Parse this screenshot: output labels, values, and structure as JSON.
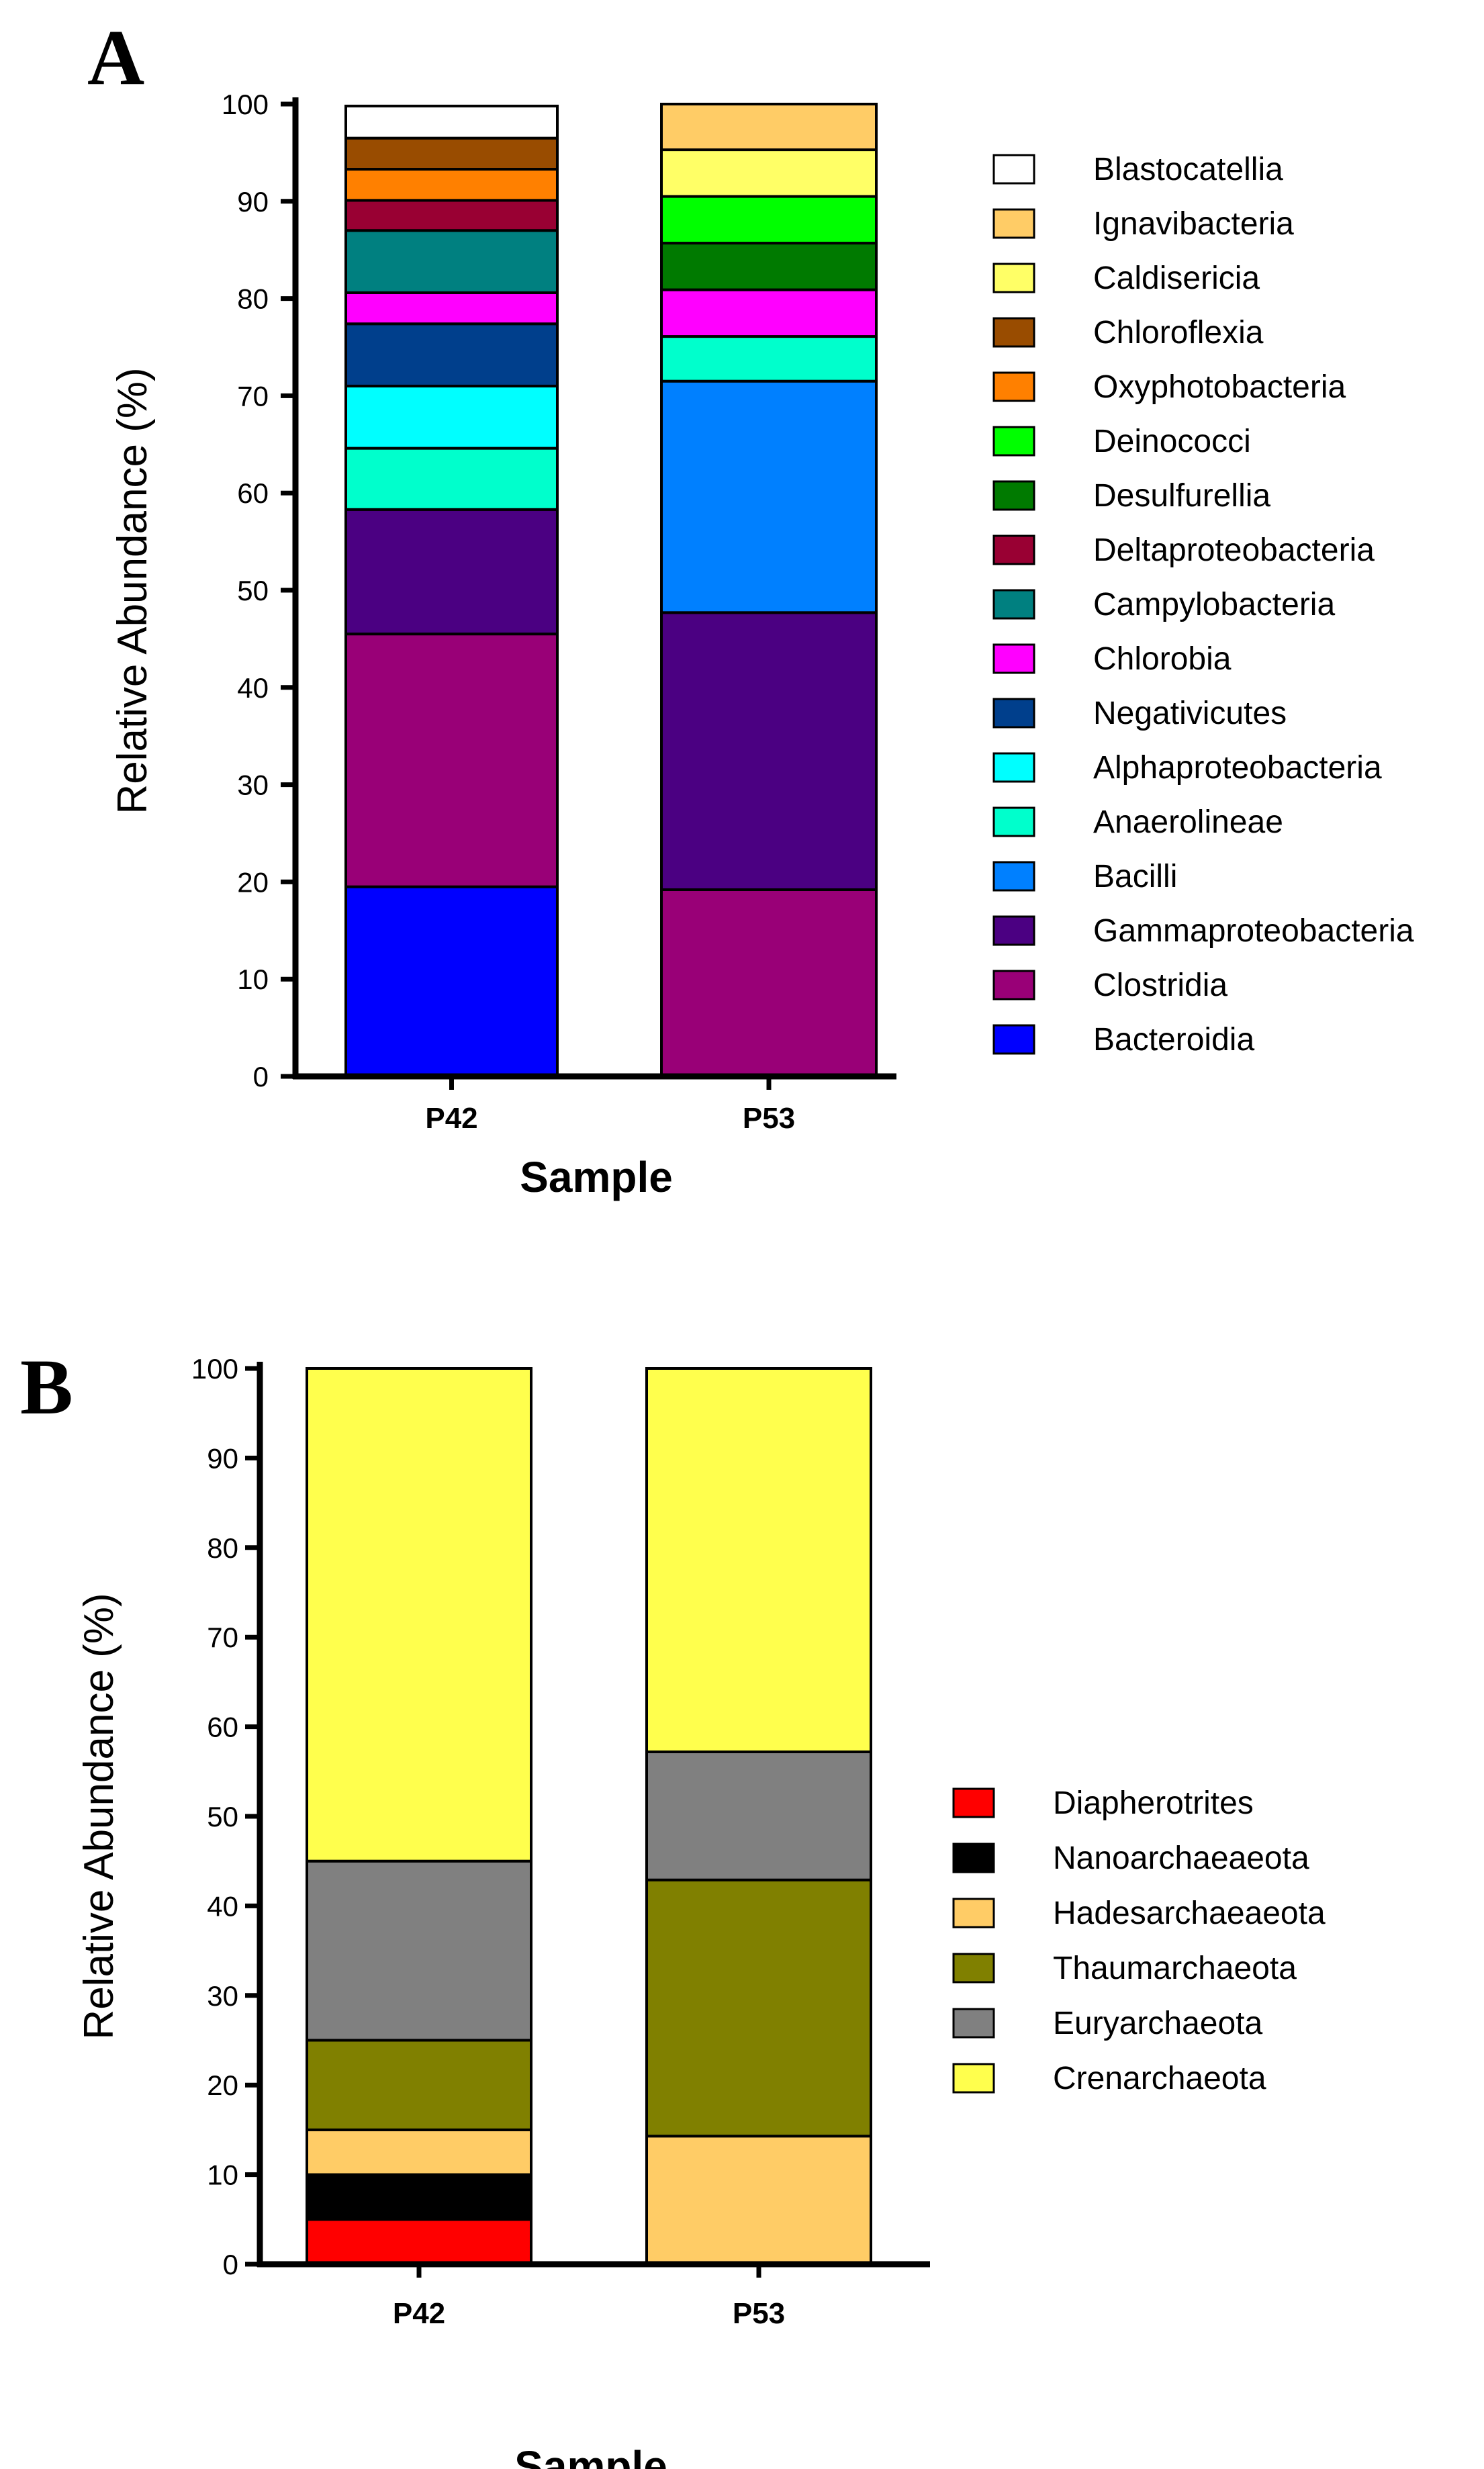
{
  "chart_data": [
    {
      "panel": "A",
      "type": "bar",
      "stacked": true,
      "title": "",
      "xlabel": "Sample",
      "ylabel": "Relative Abundance (%)",
      "ylim": [
        0,
        100
      ],
      "yticks": [
        0,
        10,
        20,
        30,
        40,
        50,
        60,
        70,
        80,
        90,
        100
      ],
      "categories": [
        "P42",
        "P53"
      ],
      "series": [
        {
          "name": "Bacteroidia",
          "color": "#0000FF",
          "values": [
            19.5,
            0
          ]
        },
        {
          "name": "Clostridia",
          "color": "#990077",
          "values": [
            26,
            19.2
          ]
        },
        {
          "name": "Gammaproteobacteria",
          "color": "#4B0082",
          "values": [
            12.8,
            28.5
          ]
        },
        {
          "name": "Bacilli",
          "color": "#0080FF",
          "values": [
            0,
            23.8
          ]
        },
        {
          "name": "Anaerolineae",
          "color": "#00FFCC",
          "values": [
            6.3,
            4.6
          ]
        },
        {
          "name": "Alphaproteobacteria",
          "color": "#00FFFF",
          "values": [
            6.4,
            0
          ]
        },
        {
          "name": "Negativicutes",
          "color": "#003F8C",
          "values": [
            6.4,
            0
          ]
        },
        {
          "name": "Chlorobia",
          "color": "#FF00FF",
          "values": [
            3.2,
            4.8
          ]
        },
        {
          "name": "Campylobacteria",
          "color": "#008080",
          "values": [
            6.4,
            0
          ]
        },
        {
          "name": "Deltaproteobacteria",
          "color": "#990033",
          "values": [
            3.1,
            0
          ]
        },
        {
          "name": "Desulfurellia",
          "color": "#007A00",
          "values": [
            0,
            4.8
          ]
        },
        {
          "name": "Deinococci",
          "color": "#00FF00",
          "values": [
            0,
            4.8
          ]
        },
        {
          "name": "Oxyphotobacteria",
          "color": "#FF8000",
          "values": [
            3.2,
            0
          ]
        },
        {
          "name": "Chloroflexia",
          "color": "#994C00",
          "values": [
            3.2,
            0
          ]
        },
        {
          "name": "Caldisericia",
          "color": "#FFFF66",
          "values": [
            0,
            4.8
          ]
        },
        {
          "name": "Ignavibacteria",
          "color": "#FFCC66",
          "values": [
            0,
            4.7
          ]
        },
        {
          "name": "Blastocatellia",
          "color": "#FFFFFF",
          "values": [
            3.3,
            0
          ]
        }
      ],
      "legend": {
        "placement": "right",
        "entries": [
          "Blastocatellia",
          "Ignavibacteria",
          "Caldisericia",
          "Chloroflexia",
          "Oxyphotobacteria",
          "Deinococci",
          "Desulfurellia",
          "Deltaproteobacteria",
          "Campylobacteria",
          "Chlorobia",
          "Negativicutes",
          "Alphaproteobacteria",
          "Anaerolineae",
          "Bacilli",
          "Gammaproteobacteria",
          "Clostridia",
          "Bacteroidia"
        ]
      }
    },
    {
      "panel": "B",
      "type": "bar",
      "stacked": true,
      "title": "",
      "xlabel": "Sample",
      "ylabel": "Relative Abundance (%)",
      "ylim": [
        0,
        100
      ],
      "yticks": [
        0,
        10,
        20,
        30,
        40,
        50,
        60,
        70,
        80,
        90,
        100
      ],
      "categories": [
        "P42",
        "P53"
      ],
      "series": [
        {
          "name": "Diapherotrites",
          "color": "#FF0000",
          "values": [
            5,
            0
          ]
        },
        {
          "name": "Nanoarchaeaeota",
          "color": "#000000",
          "values": [
            5,
            0
          ]
        },
        {
          "name": "Hadesarchaeaeota",
          "color": "#FFCC66",
          "values": [
            5,
            14.3
          ]
        },
        {
          "name": "Thaumarchaeota",
          "color": "#808000",
          "values": [
            10,
            28.6
          ]
        },
        {
          "name": "Euryarchaeota",
          "color": "#808080",
          "values": [
            20,
            14.3
          ]
        },
        {
          "name": "Crenarchaeota",
          "color": "#FFFF4D",
          "values": [
            55,
            42.8
          ]
        }
      ],
      "legend": {
        "placement": "right",
        "entries": [
          "Diapherotrites",
          "Nanoarchaeaeota",
          "Hadesarchaeaeota",
          "Thaumarchaeota",
          "Euryarchaeota",
          "Crenarchaeota"
        ]
      }
    }
  ]
}
